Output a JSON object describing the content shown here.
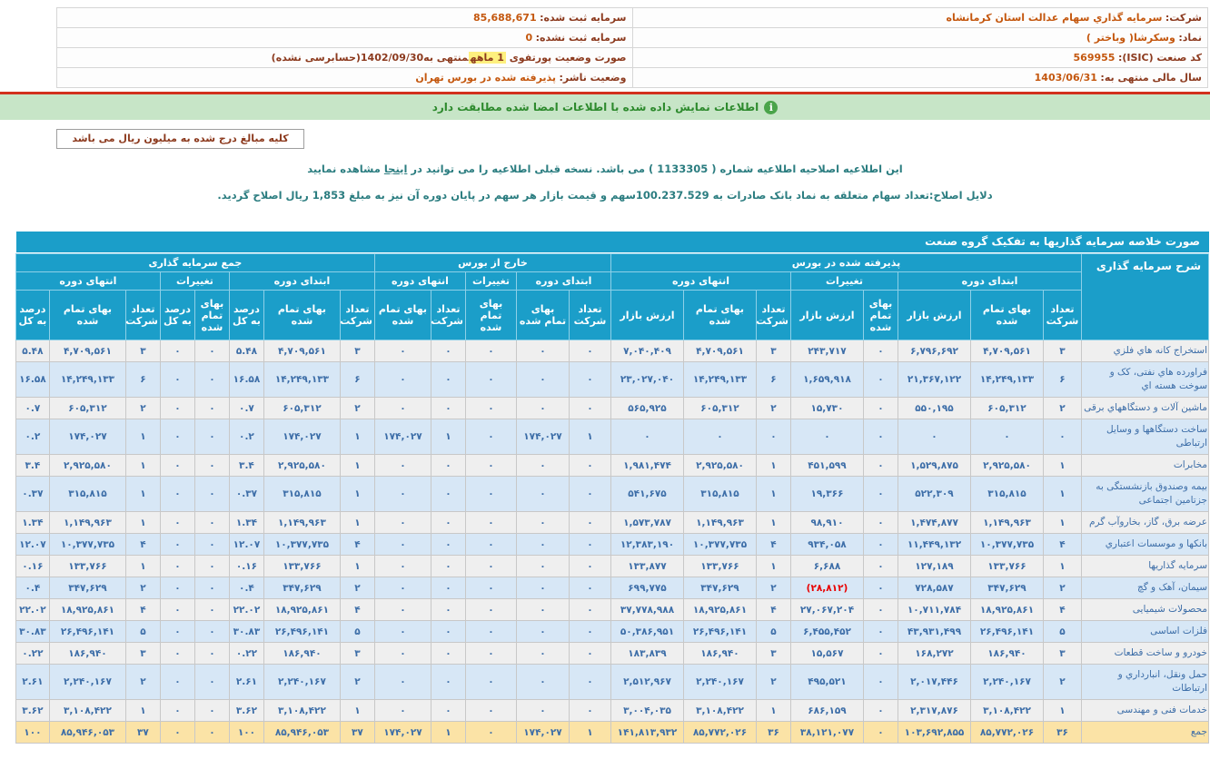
{
  "header_info": {
    "right_rows": [
      {
        "label": "شرکت:",
        "value": "سرمایه گذاري سهام عدالت استان کرمانشاه"
      },
      {
        "label": "نماد:",
        "value": "وسکرشا( وباختر )"
      },
      {
        "label": "کد صنعت (ISIC):",
        "value": "569955"
      },
      {
        "label": "سال مالی منتهی به:",
        "value": "1403/06/31"
      }
    ],
    "left_rows": [
      {
        "label": "سرمایه ثبت شده:",
        "value": "85,688,671"
      },
      {
        "label": "سرمایه ثبت نشده:",
        "value": "0"
      },
      {
        "label_pre": "صورت وضعیت پورتفوی ",
        "highlight": "1 ماهه",
        "label_mid": "منتهی به",
        "value": "1402/09/30",
        "label_post": "(حسابرسی نشده)"
      },
      {
        "label": "وضعیت ناشر:",
        "value": "پذیرفته شده در بورس تهران"
      }
    ]
  },
  "banner": {
    "icon": "i",
    "text": "اطلاعات نمایش داده شده با اطلاعات امضا شده مطابقت دارد"
  },
  "amount_note": "کلیه مبالغ درج شده به میلیون ریال می باشد",
  "amendment": {
    "prefix": "این اطلاعیه اصلاحیه اطلاعیه شماره ( 1133305 ) می باشد. نسخه قبلی اطلاعیه را می توانید در ",
    "link": "اینجا",
    "suffix": " مشاهده نمایید"
  },
  "reason": "دلایل اصلاح:تعداد سهام متعلقه به نماد بانک صادرات به 100.237.529سهم و قیمت بازار هر سهم در پایان دوره آن نیز به مبلغ 1,853 ریال اصلاح گردید.",
  "table": {
    "title": "صورت خلاصه سرمایه گذاریها به تفکیک گروه صنعت",
    "header": {
      "desc": "شرح سرمایه گذاری",
      "groups": [
        {
          "label": "پذیرفته شده در بورس",
          "subs": [
            {
              "label": "ابتدای دوره",
              "cols": [
                "تعداد شرکت",
                "بهای تمام شده",
                "ارزش بازار"
              ]
            },
            {
              "label": "تغییرات",
              "cols": [
                "بهای تمام شده",
                "ارزش بازار"
              ]
            },
            {
              "label": "انتهای دوره",
              "cols": [
                "تعداد شرکت",
                "بهای تمام شده",
                "ارزش بازار"
              ]
            }
          ]
        },
        {
          "label": "خارج از بورس",
          "subs": [
            {
              "label": "ابتدای دوره",
              "cols": [
                "تعداد شرکت",
                "بهای تمام شده"
              ]
            },
            {
              "label": "تغییرات",
              "cols": [
                "بهای تمام شده"
              ]
            },
            {
              "label": "انتهای دوره",
              "cols": [
                "تعداد شرکت",
                "بهای تمام شده"
              ]
            }
          ]
        },
        {
          "label": "جمع سرمایه گذاری",
          "subs": [
            {
              "label": "ابتدای دوره",
              "cols": [
                "تعداد شرکت",
                "بهای تمام شده",
                "درصد به کل"
              ]
            },
            {
              "label": "تغییرات",
              "cols": [
                "بهای تمام شده",
                "درصد به کل"
              ]
            },
            {
              "label": "انتهای دوره",
              "cols": [
                "تعداد شرکت",
                "بهای تمام شده",
                "درصد به کل"
              ]
            }
          ]
        }
      ]
    },
    "rows": [
      {
        "label": "استخراج کانه هاي فلزي",
        "total": false,
        "cells": [
          "۳",
          "۴,۷۰۹,۵۶۱",
          "۶,۷۹۶,۶۹۲",
          "۰",
          "۲۴۳,۷۱۷",
          "۳",
          "۴,۷۰۹,۵۶۱",
          "۷,۰۴۰,۴۰۹",
          "۰",
          "۰",
          "۰",
          "۰",
          "۰",
          "۳",
          "۴,۷۰۹,۵۶۱",
          "۵.۴۸",
          "۰",
          "۰",
          "۳",
          "۴,۷۰۹,۵۶۱",
          "۵.۴۸"
        ]
      },
      {
        "label": "فراورده هاي نفتی، کک و سوخت هسته اي",
        "total": false,
        "cells": [
          "۶",
          "۱۴,۲۴۹,۱۳۳",
          "۲۱,۳۶۷,۱۲۲",
          "۰",
          "۱,۶۵۹,۹۱۸",
          "۶",
          "۱۴,۲۴۹,۱۳۳",
          "۲۳,۰۲۷,۰۴۰",
          "۰",
          "۰",
          "۰",
          "۰",
          "۰",
          "۶",
          "۱۴,۲۴۹,۱۳۳",
          "۱۶.۵۸",
          "۰",
          "۰",
          "۶",
          "۱۴,۲۴۹,۱۳۳",
          "۱۶.۵۸"
        ]
      },
      {
        "label": "ماشین آلات و دستگاههاي برقی",
        "total": false,
        "cells": [
          "۲",
          "۶۰۵,۳۱۲",
          "۵۵۰,۱۹۵",
          "۰",
          "۱۵,۷۳۰",
          "۲",
          "۶۰۵,۳۱۲",
          "۵۶۵,۹۲۵",
          "۰",
          "۰",
          "۰",
          "۰",
          "۰",
          "۲",
          "۶۰۵,۳۱۲",
          "۰.۷",
          "۰",
          "۰",
          "۲",
          "۶۰۵,۳۱۲",
          "۰.۷"
        ]
      },
      {
        "label": "ساخت دستگاهها و وسایل ارتباطی",
        "total": false,
        "cells": [
          "۰",
          "۰",
          "۰",
          "۰",
          "۰",
          "۰",
          "۰",
          "۰",
          "۱",
          "۱۷۴,۰۲۷",
          "۰",
          "۱",
          "۱۷۴,۰۲۷",
          "۱",
          "۱۷۴,۰۲۷",
          "۰.۲",
          "۰",
          "۰",
          "۱",
          "۱۷۴,۰۲۷",
          "۰.۲"
        ]
      },
      {
        "label": "مخابرات",
        "total": false,
        "cells": [
          "۱",
          "۲,۹۲۵,۵۸۰",
          "۱,۵۲۹,۸۷۵",
          "۰",
          "۴۵۱,۵۹۹",
          "۱",
          "۲,۹۲۵,۵۸۰",
          "۱,۹۸۱,۴۷۴",
          "۰",
          "۰",
          "۰",
          "۰",
          "۰",
          "۱",
          "۲,۹۲۵,۵۸۰",
          "۳.۴",
          "۰",
          "۰",
          "۱",
          "۲,۹۲۵,۵۸۰",
          "۳.۴"
        ]
      },
      {
        "label": "بیمه وصندوق بازنشستگی به جزتامین اجتماعی",
        "total": false,
        "cells": [
          "۱",
          "۳۱۵,۸۱۵",
          "۵۲۲,۳۰۹",
          "۰",
          "۱۹,۳۶۶",
          "۱",
          "۳۱۵,۸۱۵",
          "۵۴۱,۶۷۵",
          "۰",
          "۰",
          "۰",
          "۰",
          "۰",
          "۱",
          "۳۱۵,۸۱۵",
          "۰.۳۷",
          "۰",
          "۰",
          "۱",
          "۳۱۵,۸۱۵",
          "۰.۳۷"
        ]
      },
      {
        "label": "عرضه برق، گاز، بخاروآب گرم",
        "total": false,
        "cells": [
          "۱",
          "۱,۱۴۹,۹۶۳",
          "۱,۴۷۴,۸۷۷",
          "۰",
          "۹۸,۹۱۰",
          "۱",
          "۱,۱۴۹,۹۶۳",
          "۱,۵۷۳,۷۸۷",
          "۰",
          "۰",
          "۰",
          "۰",
          "۰",
          "۱",
          "۱,۱۴۹,۹۶۳",
          "۱.۳۴",
          "۰",
          "۰",
          "۱",
          "۱,۱۴۹,۹۶۳",
          "۱.۳۴"
        ]
      },
      {
        "label": "بانکها و موسسات اعتباري",
        "total": false,
        "cells": [
          "۴",
          "۱۰,۳۷۷,۷۳۵",
          "۱۱,۴۴۹,۱۳۲",
          "۰",
          "۹۳۴,۰۵۸",
          "۴",
          "۱۰,۳۷۷,۷۳۵",
          "۱۲,۳۸۳,۱۹۰",
          "۰",
          "۰",
          "۰",
          "۰",
          "۰",
          "۴",
          "۱۰,۳۷۷,۷۳۵",
          "۱۲.۰۷",
          "۰",
          "۰",
          "۴",
          "۱۰,۳۷۷,۷۳۵",
          "۱۲.۰۷"
        ]
      },
      {
        "label": "سرمایه گذاریها",
        "total": false,
        "cells": [
          "۱",
          "۱۳۳,۷۶۶",
          "۱۲۷,۱۸۹",
          "۰",
          "۶,۶۸۸",
          "۱",
          "۱۳۳,۷۶۶",
          "۱۳۳,۸۷۷",
          "۰",
          "۰",
          "۰",
          "۰",
          "۰",
          "۱",
          "۱۳۳,۷۶۶",
          "۰.۱۶",
          "۰",
          "۰",
          "۱",
          "۱۳۳,۷۶۶",
          "۰.۱۶"
        ]
      },
      {
        "label": "سیمان، آهک و گچ",
        "total": false,
        "cells": [
          "۲",
          "۳۴۷,۶۲۹",
          "۷۲۸,۵۸۷",
          "۰",
          "(۲۸,۸۱۲)",
          "۲",
          "۳۴۷,۶۲۹",
          "۶۹۹,۷۷۵",
          "۰",
          "۰",
          "۰",
          "۰",
          "۰",
          "۲",
          "۳۴۷,۶۲۹",
          "۰.۴",
          "۰",
          "۰",
          "۲",
          "۳۴۷,۶۲۹",
          "۰.۴"
        ]
      },
      {
        "label": "محصولات شیمیایی",
        "total": false,
        "cells": [
          "۴",
          "۱۸,۹۲۵,۸۶۱",
          "۱۰,۷۱۱,۷۸۴",
          "۰",
          "۲۷,۰۶۷,۲۰۴",
          "۴",
          "۱۸,۹۲۵,۸۶۱",
          "۳۷,۷۷۸,۹۸۸",
          "۰",
          "۰",
          "۰",
          "۰",
          "۰",
          "۴",
          "۱۸,۹۲۵,۸۶۱",
          "۲۲.۰۲",
          "۰",
          "۰",
          "۴",
          "۱۸,۹۲۵,۸۶۱",
          "۲۲.۰۲"
        ]
      },
      {
        "label": "فلزات اساسی",
        "total": false,
        "cells": [
          "۵",
          "۲۶,۴۹۶,۱۴۱",
          "۴۳,۹۳۱,۴۹۹",
          "۰",
          "۶,۴۵۵,۴۵۲",
          "۵",
          "۲۶,۴۹۶,۱۴۱",
          "۵۰,۳۸۶,۹۵۱",
          "۰",
          "۰",
          "۰",
          "۰",
          "۰",
          "۵",
          "۲۶,۴۹۶,۱۴۱",
          "۳۰.۸۳",
          "۰",
          "۰",
          "۵",
          "۲۶,۴۹۶,۱۴۱",
          "۳۰.۸۳"
        ]
      },
      {
        "label": "خودرو و ساخت قطعات",
        "total": false,
        "cells": [
          "۳",
          "۱۸۶,۹۴۰",
          "۱۶۸,۲۷۲",
          "۰",
          "۱۵,۵۶۷",
          "۳",
          "۱۸۶,۹۴۰",
          "۱۸۳,۸۳۹",
          "۰",
          "۰",
          "۰",
          "۰",
          "۰",
          "۳",
          "۱۸۶,۹۴۰",
          "۰.۲۲",
          "۰",
          "۰",
          "۳",
          "۱۸۶,۹۴۰",
          "۰.۲۲"
        ]
      },
      {
        "label": "حمل ونقل، انبارداري و ارتباطات",
        "total": false,
        "cells": [
          "۲",
          "۲,۲۴۰,۱۶۷",
          "۲,۰۱۷,۴۴۶",
          "۰",
          "۴۹۵,۵۲۱",
          "۲",
          "۲,۲۴۰,۱۶۷",
          "۲,۵۱۲,۹۶۷",
          "۰",
          "۰",
          "۰",
          "۰",
          "۰",
          "۲",
          "۲,۲۴۰,۱۶۷",
          "۲.۶۱",
          "۰",
          "۰",
          "۲",
          "۲,۲۴۰,۱۶۷",
          "۲.۶۱"
        ]
      },
      {
        "label": "خدمات فنی و مهندسی",
        "total": false,
        "cells": [
          "۱",
          "۳,۱۰۸,۴۲۲",
          "۲,۳۱۷,۸۷۶",
          "۰",
          "۶۸۶,۱۵۹",
          "۱",
          "۳,۱۰۸,۴۲۲",
          "۳,۰۰۴,۰۳۵",
          "۰",
          "۰",
          "۰",
          "۰",
          "۰",
          "۱",
          "۳,۱۰۸,۴۲۲",
          "۳.۶۲",
          "۰",
          "۰",
          "۱",
          "۳,۱۰۸,۴۲۲",
          "۳.۶۲"
        ]
      },
      {
        "label": "جمع",
        "total": true,
        "cells": [
          "۳۶",
          "۸۵,۷۷۲,۰۲۶",
          "۱۰۳,۶۹۲,۸۵۵",
          "۰",
          "۳۸,۱۲۱,۰۷۷",
          "۳۶",
          "۸۵,۷۷۲,۰۲۶",
          "۱۴۱,۸۱۳,۹۳۲",
          "۱",
          "۱۷۴,۰۲۷",
          "۰",
          "۱",
          "۱۷۴,۰۲۷",
          "۳۷",
          "۸۵,۹۴۶,۰۵۳",
          "۱۰۰",
          "۰",
          "۰",
          "۳۷",
          "۸۵,۹۴۶,۰۵۳",
          "۱۰۰"
        ]
      }
    ]
  },
  "colors": {
    "accent_cyan": "#1b9ec9",
    "row_alt_gray": "#efefef",
    "row_alt_blue": "#d7e7f6",
    "total_row_amber": "#fbe3a6",
    "value_text_blue": "#3d6ea8",
    "negative_red": "#e80000",
    "banner_green_bg": "#c7e5c7",
    "banner_green_text": "#2d8a2d",
    "divider_red": "#d2301c",
    "label_maroon": "#8c3a1e",
    "value_orange": "#c4570e",
    "notice_teal": "#2b7d80",
    "highlight_yellow": "#fef07e"
  }
}
